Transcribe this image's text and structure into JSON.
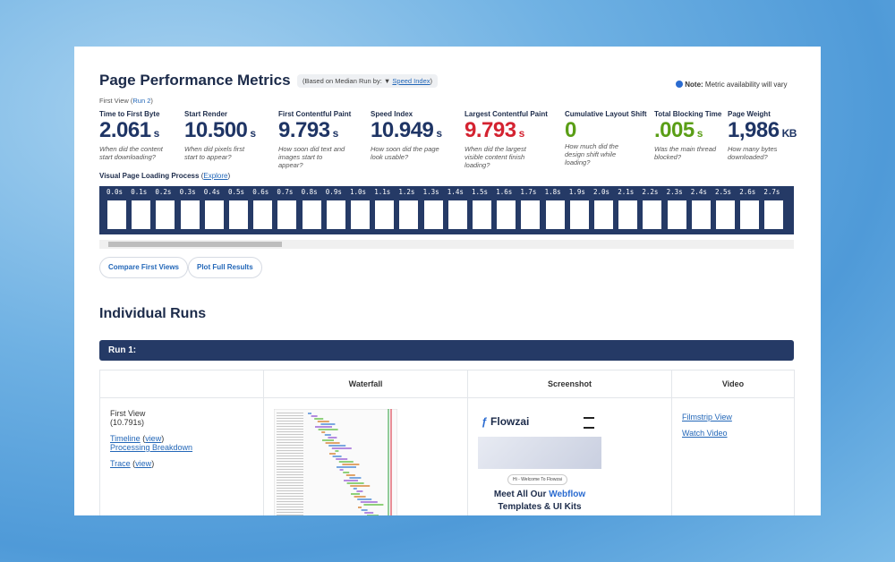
{
  "header": {
    "title": "Page Performance Metrics",
    "badge_prefix": "(Based on Median Run by: ▼",
    "badge_link": "Speed Index",
    "badge_suffix": ")",
    "note_label": "Note:",
    "note_text": "Metric availability will vary",
    "view_prefix": "First View (",
    "view_link": "Run 2",
    "view_suffix": ")"
  },
  "metrics": [
    {
      "label": "Time to First Byte",
      "value": "2.061",
      "unit": "s",
      "description": "When did the content start downloading?",
      "color": "#1f3565"
    },
    {
      "label": "Start Render",
      "value": "10.500",
      "unit": "s",
      "description": "When did pixels first start to appear?",
      "color": "#1f3565"
    },
    {
      "label": "First Contentful Paint",
      "value": "9.793",
      "unit": "s",
      "description": "How soon did text and images start to appear?",
      "color": "#1f3565"
    },
    {
      "label": "Speed Index",
      "value": "10.949",
      "unit": "s",
      "description": "How soon did the page look usable?",
      "color": "#1f3565"
    },
    {
      "label": "Largest Contentful Paint",
      "value": "9.793",
      "unit": "s",
      "description": "When did the largest visible content finish loading?",
      "color": "#d42331"
    },
    {
      "label": "Cumulative Layout Shift",
      "value": "0",
      "unit": "",
      "description": "How much did the design shift while loading?",
      "color": "#5a9e16"
    },
    {
      "label": "Total Blocking Time",
      "value": ".005",
      "unit": "s",
      "description": "Was the main thread blocked?",
      "color": "#5a9e16"
    },
    {
      "label": "Page Weight",
      "value": "1,986",
      "unit": "KB",
      "description": "How many bytes downloaded?",
      "color": "#1f3565"
    }
  ],
  "filmstrip": {
    "title": "Visual Page Loading Process",
    "link_prefix": "(",
    "link": "Explore",
    "link_suffix": ")",
    "times": [
      "0.0s",
      "0.1s",
      "0.2s",
      "0.3s",
      "0.4s",
      "0.5s",
      "0.6s",
      "0.7s",
      "0.8s",
      "0.9s",
      "1.0s",
      "1.1s",
      "1.2s",
      "1.3s",
      "1.4s",
      "1.5s",
      "1.6s",
      "1.7s",
      "1.8s",
      "1.9s",
      "2.0s",
      "2.1s",
      "2.2s",
      "2.3s",
      "2.4s",
      "2.5s",
      "2.6s",
      "2.7s"
    ]
  },
  "buttons": [
    "Compare First Views",
    "Plot Full Results"
  ],
  "runs": {
    "title": "Individual Runs",
    "run_title": "Run 1:",
    "table": {
      "headers": [
        "Waterfall",
        "Screenshot",
        "Video"
      ],
      "view": "First View",
      "duration": "(10.791s)",
      "timeline": "Timeline",
      "timeline_view": "view",
      "processing": "Processing Breakdown",
      "trace": "Trace",
      "trace_view": "view",
      "filmstrip_view": "Filmstrip View",
      "watch_video": "Watch Video"
    },
    "screenshot": {
      "brand": "Flowzai",
      "pill": "Hi - Welcome To Flowzai",
      "headline_1": "Meet All Our",
      "headline_accent": "Webflow",
      "headline_2": "Templates & UI Kits"
    }
  }
}
